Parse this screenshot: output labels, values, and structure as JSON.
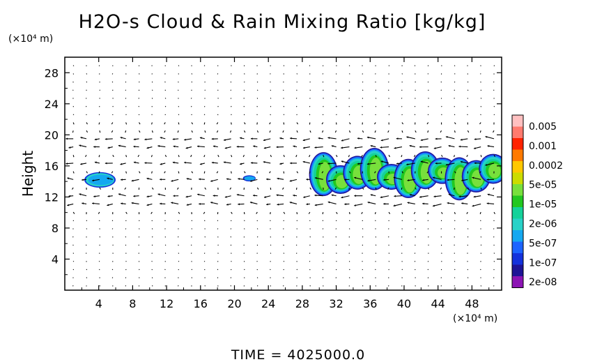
{
  "chart_data": {
    "type": "heatmap",
    "title": "H2O-s Cloud & Rain Mixing Ratio [kg/kg]",
    "ylabel": "Height",
    "x_unit_label": "(×10⁴ m)",
    "y_unit_label": "(×10⁴ m)",
    "time_label": "TIME = 4025000.0",
    "xlim": [
      0,
      51.5
    ],
    "ylim": [
      0,
      30
    ],
    "x_ticks": [
      "4",
      "8",
      "12",
      "16",
      "20",
      "24",
      "28",
      "32",
      "36",
      "40",
      "44",
      "48"
    ],
    "y_ticks": [
      "4",
      "8",
      "12",
      "16",
      "20",
      "24",
      "28"
    ],
    "colorbar": {
      "labels": [
        "0.005",
        "0.001",
        "0.0002",
        "5e-05",
        "1e-05",
        "2e-06",
        "5e-07",
        "1e-07",
        "2e-08"
      ],
      "colors": [
        "#ffc0c0",
        "#ff7a6e",
        "#ff2200",
        "#ff7a00",
        "#ffc800",
        "#ccdc00",
        "#78e03c",
        "#22c820",
        "#14d29a",
        "#28d2c8",
        "#14a8f0",
        "#1c64ff",
        "#1432dc",
        "#1e1496",
        "#8c14b4"
      ]
    },
    "cloud_regions": [
      {
        "x_range": [
          2.3,
          6.0
        ],
        "y_range": [
          13.2,
          15.2
        ],
        "level": "5e-07"
      },
      {
        "x_range": [
          21.0,
          22.5
        ],
        "y_range": [
          14.0,
          14.8
        ],
        "level": "5e-07"
      },
      {
        "x_range": [
          29.5,
          51.5
        ],
        "y_range": [
          11.7,
          17.6
        ],
        "level": "5e-05"
      }
    ],
    "vector_field": {
      "description": "wind vectors",
      "strong_levels": [
        11,
        12,
        14,
        16,
        18,
        20
      ],
      "direction": "westward"
    }
  }
}
